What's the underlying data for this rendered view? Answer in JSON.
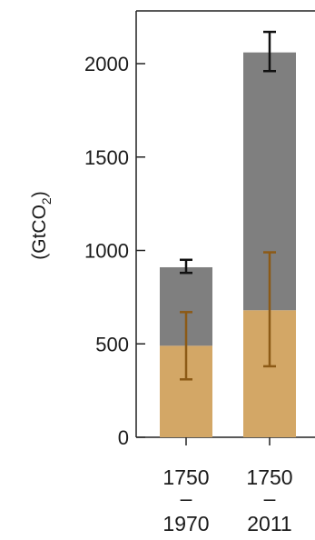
{
  "chart_data": {
    "type": "bar",
    "stacked": true,
    "ylabel_main": "(GtCO",
    "ylabel_sub": "2",
    "ylabel_close": ")",
    "ylim": [
      0,
      2250
    ],
    "yticks": [
      0,
      500,
      1000,
      1500,
      2000
    ],
    "categories": [
      {
        "top": "1750",
        "mid": "–",
        "bottom": "1970"
      },
      {
        "top": "1750",
        "mid": "–",
        "bottom": "2011"
      }
    ],
    "series": [
      {
        "color": "#d3a766",
        "values": [
          490,
          680
        ],
        "error_low": [
          310,
          380
        ],
        "error_high": [
          670,
          990
        ],
        "error_color": "#8c5a16"
      },
      {
        "color": "#7f7f7f",
        "values": [
          420,
          1380
        ],
        "totals": [
          910,
          2060
        ],
        "error_low": [
          880,
          1960
        ],
        "error_high": [
          950,
          2170
        ],
        "error_color": "#111111"
      }
    ]
  }
}
